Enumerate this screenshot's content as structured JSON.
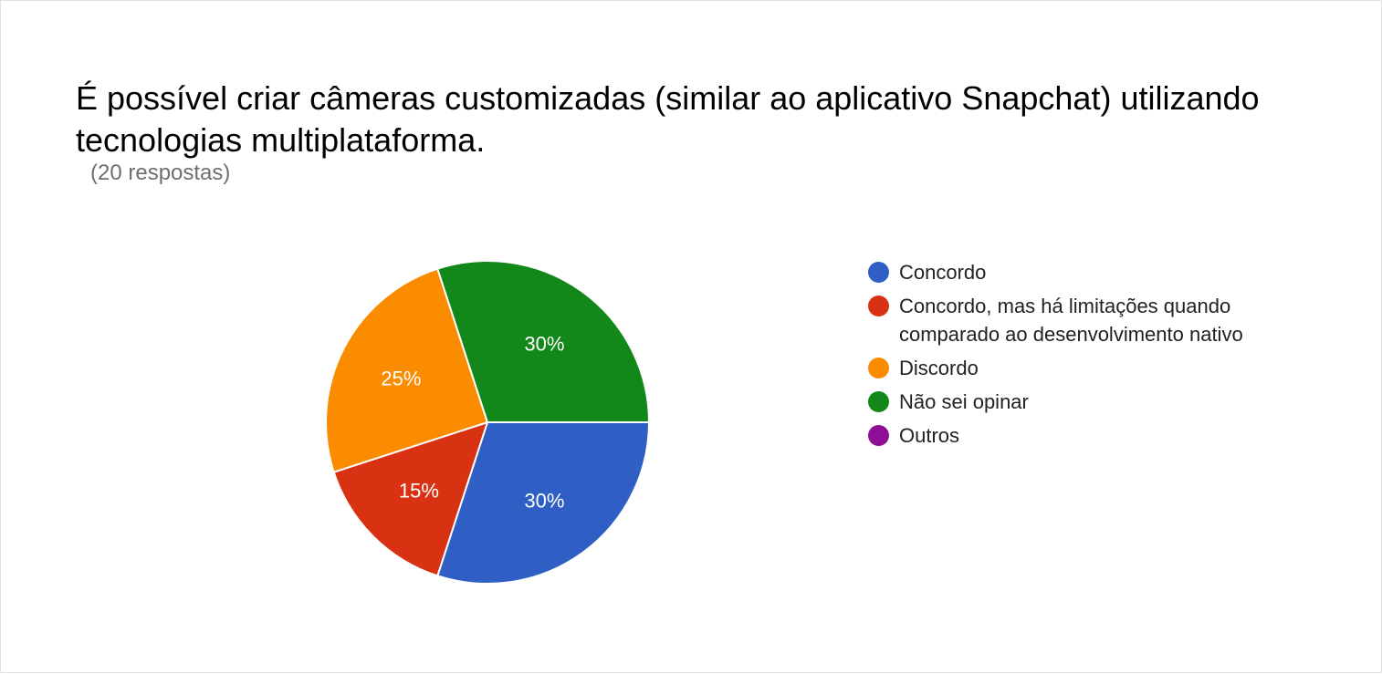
{
  "title": "É possível criar câmeras customizadas (similar ao aplicativo Snapchat) utilizando tecnologias multiplataforma.",
  "subtitle": "(20 respostas)",
  "chart_data": {
    "type": "pie",
    "title": "É possível criar câmeras customizadas (similar ao aplicativo Snapchat) utilizando tecnologias multiplataforma.",
    "legend_position": "right",
    "slices": [
      {
        "label": "Concordo",
        "value": 30,
        "display": "30%",
        "color": "#2f5ec4"
      },
      {
        "label": "Concordo, mas há limitações quando comparado ao desenvolvimento nativo",
        "value": 15,
        "display": "15%",
        "color": "#d83212"
      },
      {
        "label": "Discordo",
        "value": 25,
        "display": "25%",
        "color": "#fb8c00"
      },
      {
        "label": "Não sei opinar",
        "value": 30,
        "display": "30%",
        "color": "#13881a"
      },
      {
        "label": "Outros",
        "value": 0,
        "display": "0%",
        "color": "#8e0f95"
      }
    ]
  }
}
